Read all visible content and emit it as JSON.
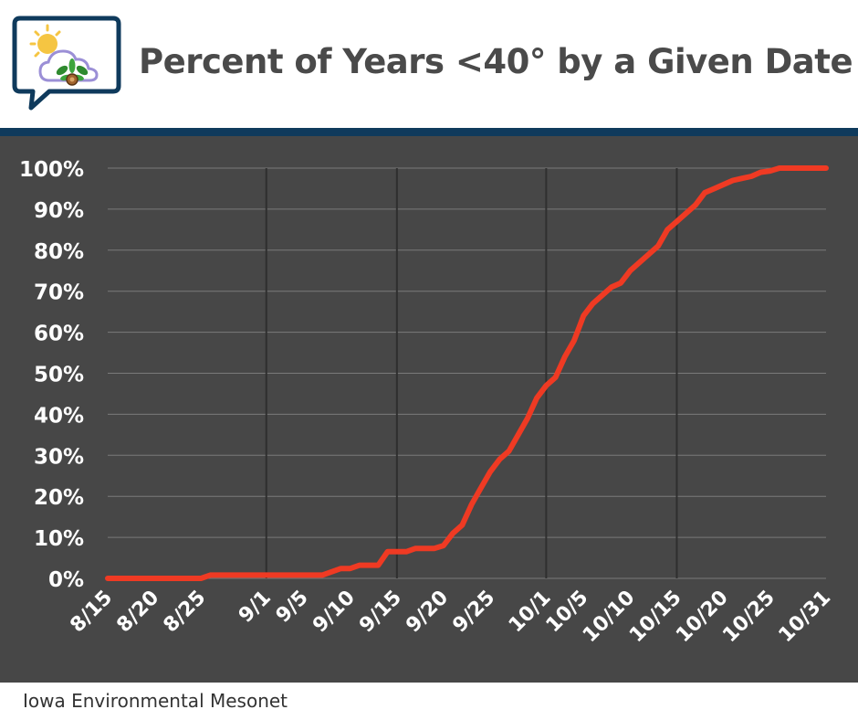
{
  "header": {
    "title": "Percent of Years <40° by a Given Date"
  },
  "footer": {
    "source": "Iowa Environmental Mesonet"
  },
  "colors": {
    "line": "#ef3a23",
    "plot_background": "#474747",
    "rule": "#0f3a5c",
    "gridline": "#7a7a7a",
    "tick_text": "#ffffff",
    "title_text": "#4a4a4a"
  },
  "chart_data": {
    "type": "line",
    "title": "Percent of Years <40° by a Given Date",
    "xlabel": "",
    "ylabel": "",
    "xlim": [
      0,
      77
    ],
    "ylim": [
      0,
      100
    ],
    "x_tick_positions": [
      0,
      5,
      10,
      17,
      21,
      26,
      31,
      36,
      41,
      47,
      51,
      56,
      61,
      66,
      71,
      77
    ],
    "x_tick_labels": [
      "8/15",
      "8/20",
      "8/25",
      "9/1",
      "9/5",
      "9/10",
      "9/15",
      "9/20",
      "9/25",
      "10/1",
      "10/5",
      "10/10",
      "10/15",
      "10/20",
      "10/25",
      "10/31"
    ],
    "vertical_gridlines_at": [
      17,
      31,
      47,
      61
    ],
    "y_ticks": [
      0,
      10,
      20,
      30,
      40,
      50,
      60,
      70,
      80,
      90,
      100
    ],
    "y_tick_labels": [
      "0%",
      "10%",
      "20%",
      "30%",
      "40%",
      "50%",
      "60%",
      "70%",
      "80%",
      "90%",
      "100%"
    ],
    "grid": true,
    "series": [
      {
        "name": "Percent of years",
        "x": [
          0,
          1,
          2,
          3,
          4,
          5,
          6,
          7,
          8,
          9,
          10,
          11,
          12,
          13,
          14,
          15,
          16,
          17,
          18,
          19,
          20,
          21,
          22,
          23,
          24,
          25,
          26,
          27,
          28,
          29,
          30,
          31,
          32,
          33,
          34,
          35,
          36,
          37,
          38,
          39,
          40,
          41,
          42,
          43,
          44,
          45,
          46,
          47,
          48,
          49,
          50,
          51,
          52,
          53,
          54,
          55,
          56,
          57,
          58,
          59,
          60,
          61,
          62,
          63,
          64,
          65,
          66,
          67,
          68,
          69,
          70,
          71,
          72,
          73,
          74,
          75,
          76,
          77
        ],
        "values": [
          0,
          0,
          0,
          0,
          0,
          0,
          0,
          0,
          0,
          0,
          0,
          0.8,
          0.8,
          0.8,
          0.8,
          0.8,
          0.8,
          0.8,
          0.8,
          0.8,
          0.8,
          0.8,
          0.8,
          0.8,
          1.6,
          2.4,
          2.4,
          3.2,
          3.2,
          3.2,
          6.5,
          6.5,
          6.5,
          7.3,
          7.3,
          7.3,
          8,
          11,
          13,
          18,
          22,
          26,
          29,
          31,
          35,
          39,
          44,
          47,
          49,
          54,
          58,
          64,
          67,
          69,
          71,
          72,
          75,
          77,
          79,
          81,
          85,
          87,
          89,
          91,
          94,
          95,
          96,
          97,
          97.5,
          98,
          99,
          99.3,
          100,
          100,
          100,
          100,
          100,
          100
        ]
      }
    ]
  }
}
